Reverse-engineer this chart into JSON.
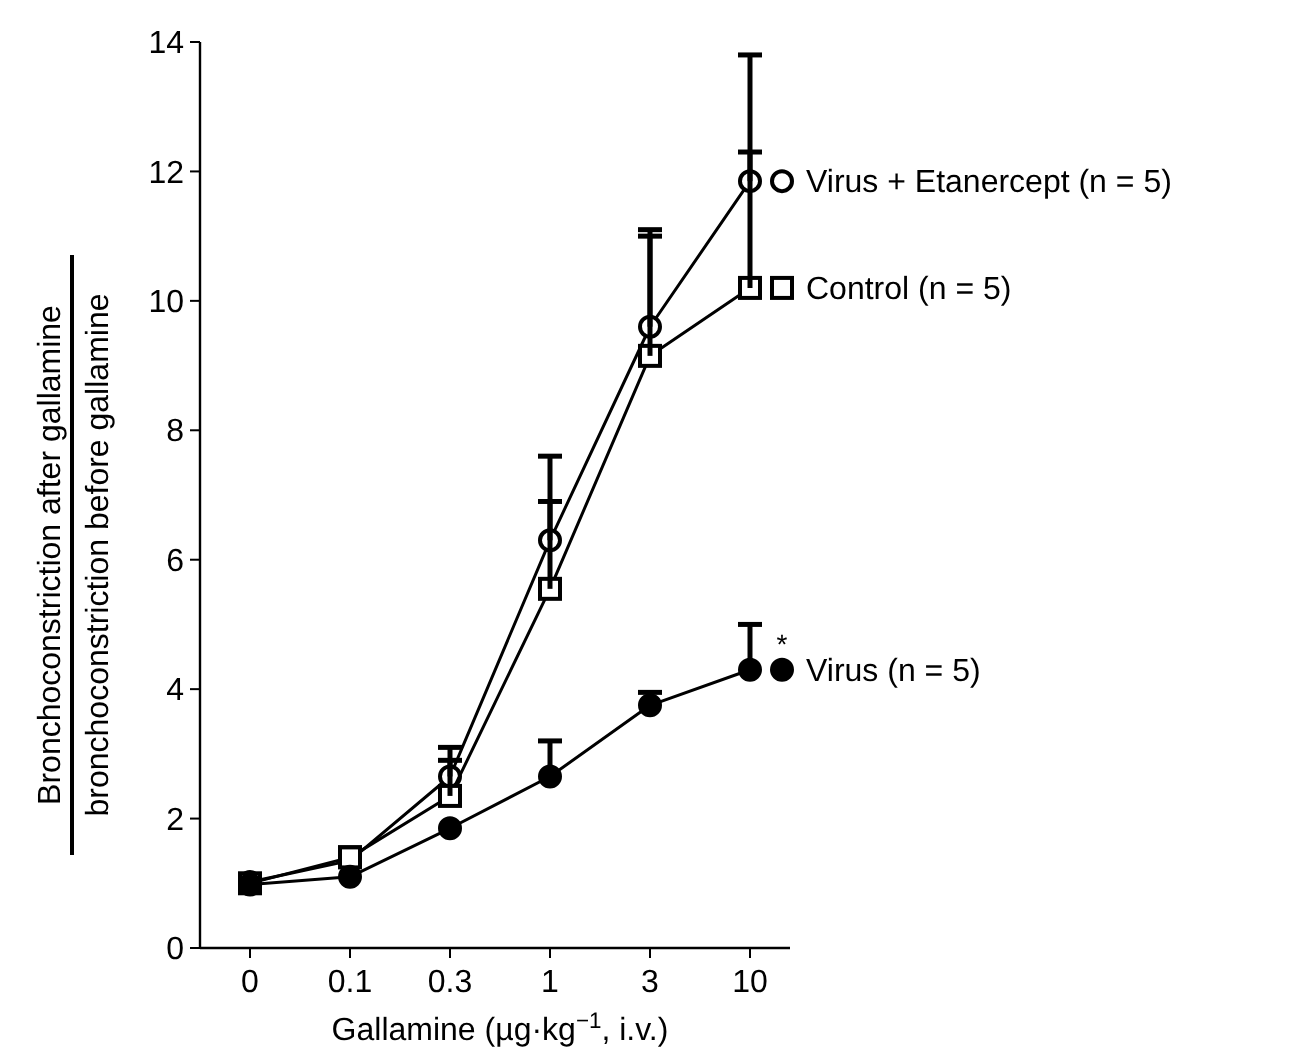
{
  "chart_data": {
    "type": "line",
    "xlabel": "Gallamine (µg·kg$^{−1}$, i.v.)",
    "ylabel": "Bronchoconstriction after gallamine\nbronchoconstriction before gallamine",
    "categories": [
      "0",
      "0.1",
      "0.3",
      "1",
      "3",
      "10"
    ],
    "ylim": [
      0,
      14
    ],
    "yticks": [
      0,
      2,
      4,
      6,
      8,
      10,
      12,
      14
    ],
    "grid": false,
    "legend": "right",
    "line_style": "solid",
    "series": [
      {
        "name": "Virus + Etanercept (n = 5)",
        "color": "#000000",
        "marker": "circle",
        "values": [
          1.02,
          1.35,
          2.65,
          6.3,
          9.6,
          11.85
        ],
        "errors": [
          null,
          [
            1.35,
            1.55
          ],
          [
            2.65,
            3.1
          ],
          [
            6.3,
            7.6
          ],
          [
            9.6,
            11.1
          ],
          [
            11.85,
            13.8
          ]
        ]
      },
      {
        "name": "Control (n = 5)",
        "color": "#000000",
        "marker": "square",
        "values": [
          1.0,
          1.4,
          2.35,
          5.55,
          9.15,
          10.2
        ],
        "errors": [
          null,
          null,
          [
            2.35,
            2.9
          ],
          [
            5.55,
            6.9
          ],
          [
            9.15,
            11.0
          ],
          [
            10.2,
            12.3
          ]
        ]
      },
      {
        "name": "Virus (n = 5)",
        "color": "#000000",
        "marker": "circle",
        "values": [
          0.98,
          1.1,
          1.85,
          2.65,
          3.75,
          4.3
        ],
        "errors": [
          null,
          null,
          null,
          [
            2.65,
            3.2
          ],
          [
            3.75,
            3.95
          ],
          [
            4.3,
            5.0
          ]
        ]
      }
    ],
    "annotations": [
      {
        "text": "*",
        "x": "10",
        "y": 4.3
      }
    ]
  }
}
